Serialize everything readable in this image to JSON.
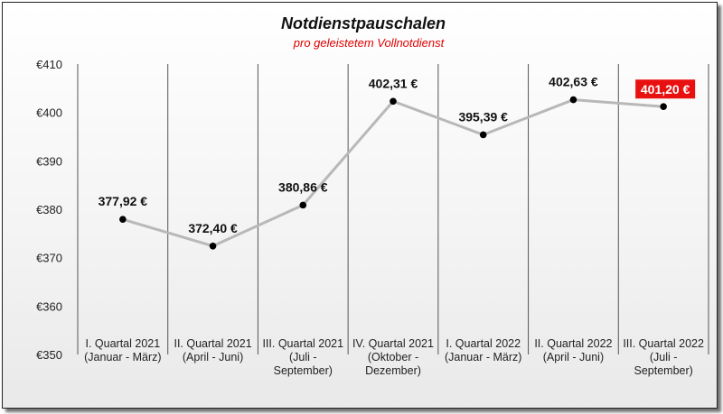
{
  "chart_data": {
    "type": "line",
    "title": "Notdienstpauschalen",
    "subtitle": "pro geleistetem Vollnotdienst",
    "categories": [
      [
        "I. Quartal 2021",
        "(Januar - März)"
      ],
      [
        "II. Quartal 2021",
        "(April - Juni)"
      ],
      [
        "III. Quartal 2021",
        "(Juli -",
        "September)"
      ],
      [
        "IV. Quartal 2021",
        "(Oktober -",
        "Dezember)"
      ],
      [
        "I. Quartal 2022",
        "(Januar - März)"
      ],
      [
        "II. Quartal 2022",
        "(April - Juni)"
      ],
      [
        "III. Quartal 2022",
        "(Juli -",
        "September)"
      ]
    ],
    "series": [
      {
        "values": [
          377.92,
          372.4,
          380.86,
          402.31,
          395.39,
          402.63,
          401.2
        ]
      }
    ],
    "data_labels": [
      "377,92 €",
      "372,40 €",
      "380,86 €",
      "402,31 €",
      "395,39 €",
      "402,63 €",
      "401,20 €"
    ],
    "highlight_index": 6,
    "ylim": [
      350,
      410
    ],
    "yticks": [
      350,
      360,
      370,
      380,
      390,
      400,
      410
    ],
    "ytick_labels": [
      "€350",
      "€360",
      "€370",
      "€380",
      "€390",
      "€400",
      "€410"
    ],
    "xlabel": "",
    "ylabel": "",
    "grid": "vertical",
    "legend": "none",
    "colors": {
      "line": "#b8b8b8",
      "marker": "#000000",
      "highlight_bg": "#e8110f",
      "subtitle": "#e00000"
    }
  }
}
